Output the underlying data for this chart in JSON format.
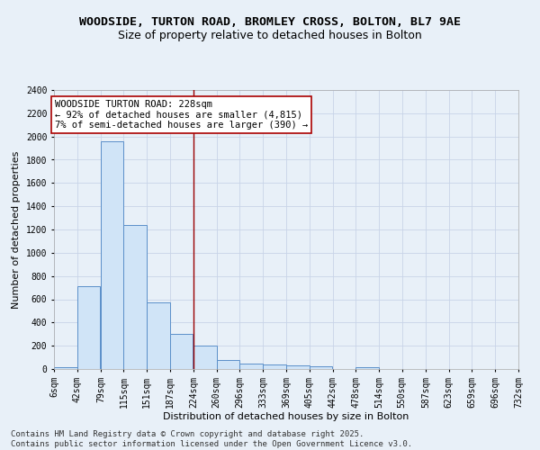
{
  "title_line1": "WOODSIDE, TURTON ROAD, BROMLEY CROSS, BOLTON, BL7 9AE",
  "title_line2": "Size of property relative to detached houses in Bolton",
  "xlabel": "Distribution of detached houses by size in Bolton",
  "ylabel": "Number of detached properties",
  "bin_edges": [
    6,
    42,
    79,
    115,
    151,
    187,
    224,
    260,
    296,
    333,
    369,
    405,
    442,
    478,
    514,
    550,
    587,
    623,
    659,
    696,
    732
  ],
  "bar_heights": [
    15,
    715,
    1960,
    1235,
    570,
    305,
    200,
    80,
    45,
    35,
    30,
    20,
    0,
    15,
    0,
    0,
    0,
    0,
    0,
    0
  ],
  "bar_color": "#d0e4f7",
  "bar_edge_color": "#5b8fc9",
  "background_color": "#e8f0f8",
  "grid_color": "#c8d4e8",
  "red_line_x": 224,
  "ylim": [
    0,
    2400
  ],
  "yticks": [
    0,
    200,
    400,
    600,
    800,
    1000,
    1200,
    1400,
    1600,
    1800,
    2000,
    2200,
    2400
  ],
  "annotation_text": "WOODSIDE TURTON ROAD: 228sqm\n← 92% of detached houses are smaller (4,815)\n7% of semi-detached houses are larger (390) →",
  "annotation_box_color": "#ffffff",
  "annotation_border_color": "#aa0000",
  "footer_text": "Contains HM Land Registry data © Crown copyright and database right 2025.\nContains public sector information licensed under the Open Government Licence v3.0.",
  "title_fontsize": 9.5,
  "subtitle_fontsize": 9,
  "axis_label_fontsize": 8,
  "tick_fontsize": 7,
  "annotation_fontsize": 7.5,
  "footer_fontsize": 6.5
}
